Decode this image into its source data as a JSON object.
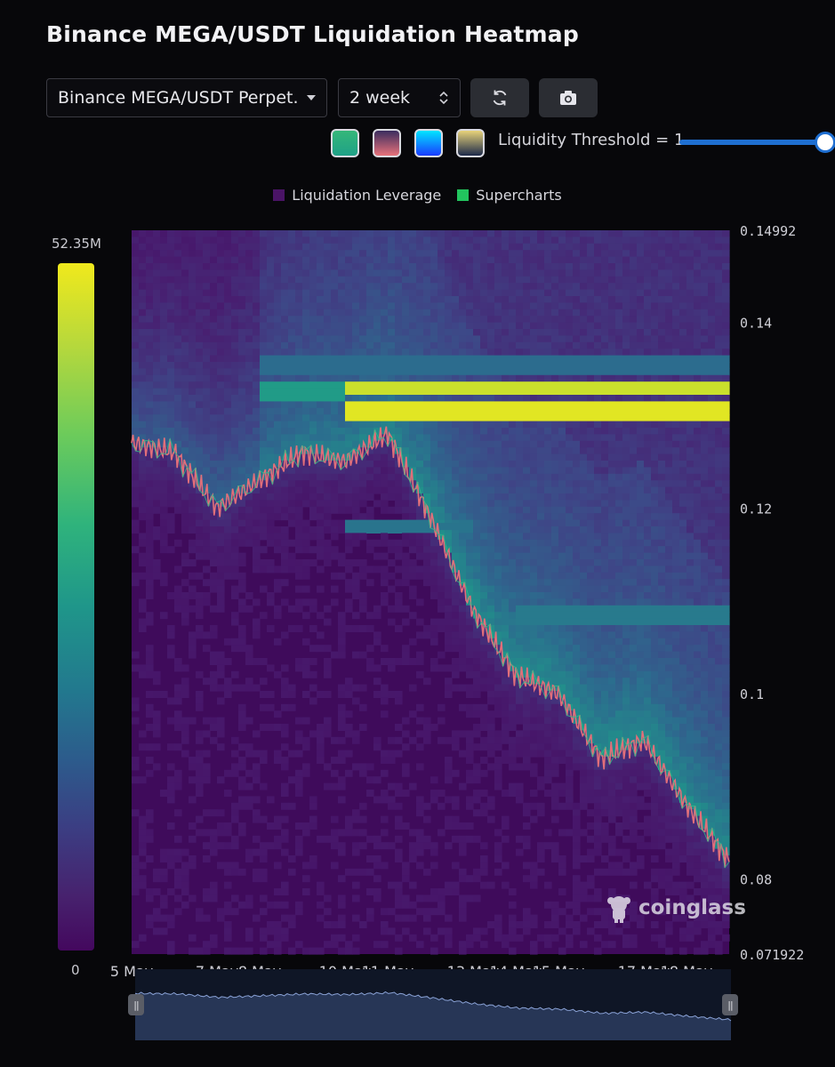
{
  "title": "Binance MEGA/USDT Liquidation Heatmap",
  "controls": {
    "pair_select": "Binance MEGA/USDT Perpet...",
    "range_select": "2 week",
    "refresh_icon": "refresh-icon",
    "camera_icon": "camera-icon",
    "palettes": [
      {
        "name": "viridis",
        "from": "#1fa187",
        "to": "#35b779"
      },
      {
        "name": "pink",
        "from": "#e8727a",
        "to": "#3a2d5e"
      },
      {
        "name": "blue",
        "from": "#1a3cff",
        "to": "#00e5ff"
      },
      {
        "name": "golden",
        "from": "#1d2a4a",
        "to": "#e8d37a"
      }
    ],
    "threshold_label": "Liquidity Threshold = 1"
  },
  "legend": [
    {
      "label": "Liquidation Leverage",
      "color": "#4a1466"
    },
    {
      "label": "Supercharts",
      "color": "#22c55e"
    }
  ],
  "colorbar": {
    "max_label": "52.35M",
    "min_label": "0"
  },
  "chart_data": {
    "type": "heatmap",
    "title": "Binance MEGA/USDT Liquidation Heatmap",
    "legend_placement": "top-center",
    "x_ticks": [
      "5 May",
      "7 May",
      "8 May",
      "10 May",
      "11 May",
      "13 May",
      "14 May",
      "15 May",
      "17 May",
      "18 May"
    ],
    "x_range": [
      "2025-05-05",
      "2025-05-19"
    ],
    "y_ticks": [
      0.14992,
      0.14,
      0.12,
      0.1,
      0.08,
      0.071922
    ],
    "y_tick_labels": [
      "0.14992",
      "0.14",
      "0.12",
      "0.1",
      "0.08",
      "0.071922"
    ],
    "ylim": [
      0.071922,
      0.14992
    ],
    "value_range": [
      0,
      52350000
    ],
    "price_series": {
      "name": "Supercharts",
      "x": [
        "5 May",
        "6 May",
        "7 May",
        "8 May",
        "9 May",
        "10 May",
        "11 May",
        "12 May",
        "13 May",
        "14 May",
        "15 May",
        "16 May",
        "17 May",
        "18 May",
        "19 May"
      ],
      "values": [
        0.127,
        0.126,
        0.12,
        0.123,
        0.126,
        0.125,
        0.128,
        0.119,
        0.109,
        0.102,
        0.1,
        0.093,
        0.095,
        0.088,
        0.082
      ]
    },
    "liquidation_bands": [
      {
        "price": 0.1328,
        "from": "10 May",
        "to": "19 May",
        "intensity": 0.95
      },
      {
        "price": 0.1305,
        "from": "10 May",
        "to": "19 May",
        "intensity": 0.98
      },
      {
        "price": 0.1325,
        "from": "8 May",
        "to": "10 May",
        "intensity": 0.62
      },
      {
        "price": 0.1355,
        "from": "8 May",
        "to": "19 May",
        "intensity": 0.45
      },
      {
        "price": 0.1085,
        "from": "14 May",
        "to": "19 May",
        "intensity": 0.5
      },
      {
        "price": 0.118,
        "from": "10 May",
        "to": "13 May",
        "intensity": 0.48
      }
    ]
  },
  "watermark": "coinglass"
}
